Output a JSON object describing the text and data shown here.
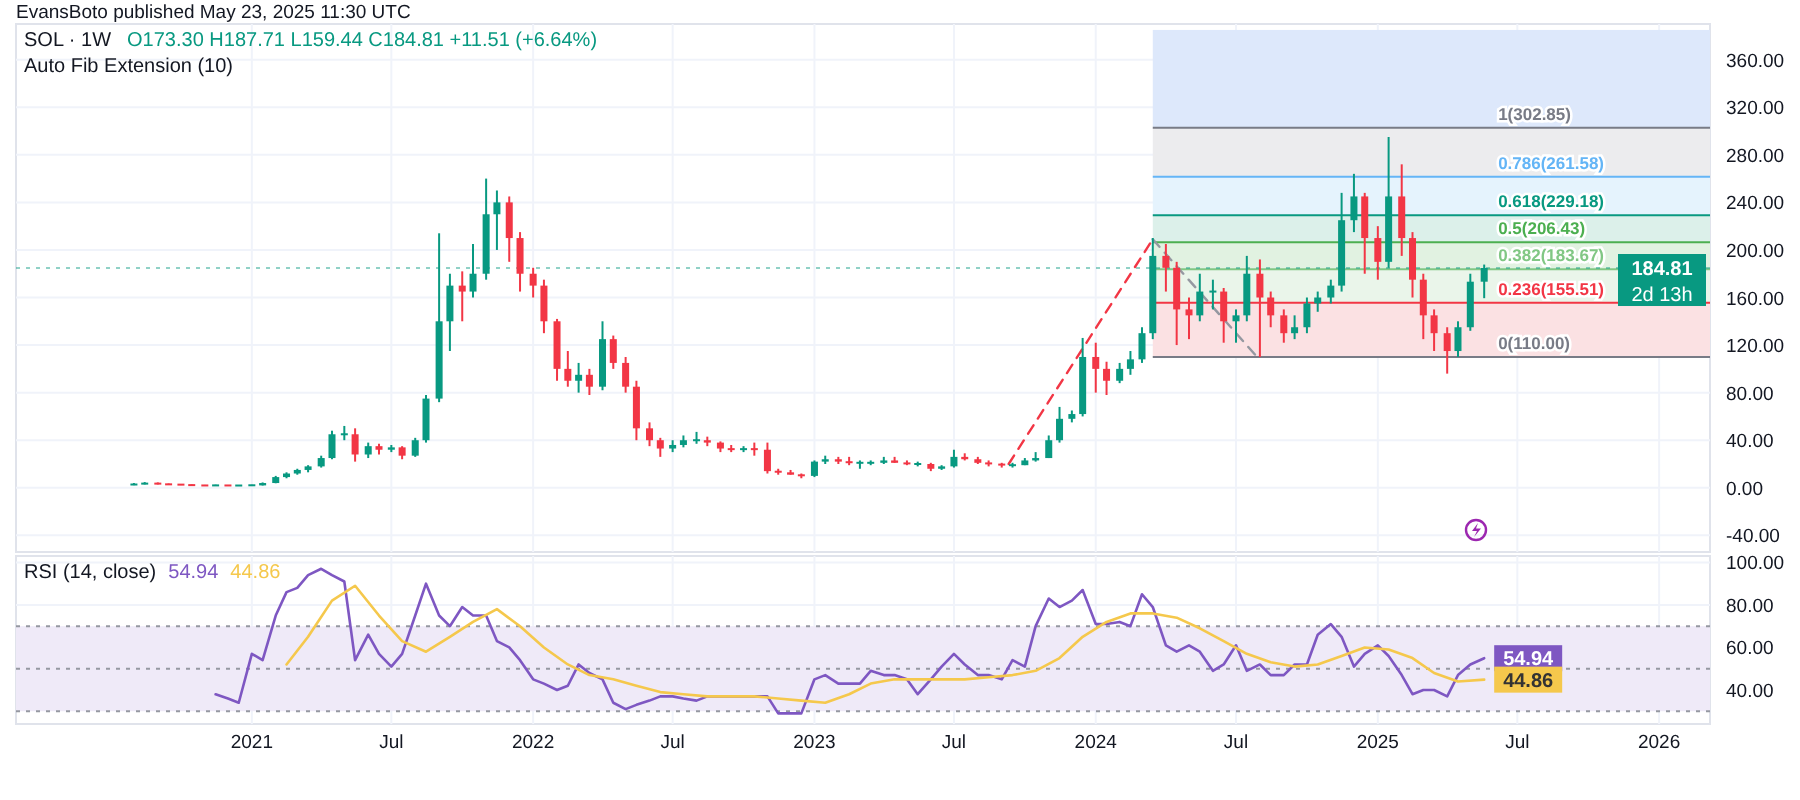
{
  "chart_data": [
    {
      "type": "candlestick",
      "title": "SOL · 1W",
      "subtitle": "O173.30 H187.71 L159.44 C184.81 +11.51 (+6.64%)",
      "annotations": [
        "EvansBoto published May 23, 2025 11:30 UTC",
        "Auto Fib Extension (10)",
        "2d 13h"
      ],
      "x": [
        "2020-08-01",
        "2020-08-15",
        "2020-09-01",
        "2020-09-15",
        "2020-10-01",
        "2020-10-15",
        "2020-11-01",
        "2020-11-15",
        "2020-12-01",
        "2020-12-15",
        "2021-01-01",
        "2021-01-15",
        "2021-02-01",
        "2021-02-15",
        "2021-03-01",
        "2021-03-15",
        "2021-04-01",
        "2021-04-15",
        "2021-05-01",
        "2021-05-15",
        "2021-06-01",
        "2021-06-15",
        "2021-07-01",
        "2021-07-15",
        "2021-08-01",
        "2021-08-15",
        "2021-09-01",
        "2021-09-15",
        "2021-10-01",
        "2021-10-15",
        "2021-11-01",
        "2021-11-15",
        "2021-12-01",
        "2021-12-15",
        "2022-01-01",
        "2022-01-15",
        "2022-02-01",
        "2022-02-15",
        "2022-03-01",
        "2022-03-15",
        "2022-04-01",
        "2022-04-15",
        "2022-05-01",
        "2022-05-15",
        "2022-06-01",
        "2022-06-15",
        "2022-07-01",
        "2022-07-15",
        "2022-08-01",
        "2022-08-15",
        "2022-09-01",
        "2022-09-15",
        "2022-10-01",
        "2022-10-15",
        "2022-11-01",
        "2022-11-15",
        "2022-12-01",
        "2022-12-15",
        "2023-01-01",
        "2023-01-15",
        "2023-02-01",
        "2023-02-15",
        "2023-03-01",
        "2023-03-15",
        "2023-04-01",
        "2023-04-15",
        "2023-05-01",
        "2023-05-15",
        "2023-06-01",
        "2023-06-15",
        "2023-07-01",
        "2023-07-15",
        "2023-08-01",
        "2023-08-15",
        "2023-09-01",
        "2023-09-15",
        "2023-10-01",
        "2023-10-15",
        "2023-11-01",
        "2023-11-15",
        "2023-12-01",
        "2023-12-15",
        "2024-01-01",
        "2024-01-15",
        "2024-02-01",
        "2024-02-15",
        "2024-03-01",
        "2024-03-15",
        "2024-04-01",
        "2024-04-15",
        "2024-05-01",
        "2024-05-15",
        "2024-06-01",
        "2024-06-15",
        "2024-07-01",
        "2024-07-15",
        "2024-08-01",
        "2024-08-15",
        "2024-09-01",
        "2024-09-15",
        "2024-10-01",
        "2024-10-15",
        "2024-11-01",
        "2024-11-15",
        "2024-12-01",
        "2024-12-15",
        "2025-01-01",
        "2025-01-15",
        "2025-02-01",
        "2025-02-15",
        "2025-03-01",
        "2025-03-15",
        "2025-04-01",
        "2025-04-15",
        "2025-05-01",
        "2025-05-19"
      ],
      "ohlc": [
        [
          2.5,
          4,
          2.2,
          3
        ],
        [
          3,
          4.8,
          2.8,
          4
        ],
        [
          4,
          4.5,
          2.8,
          3
        ],
        [
          3,
          3.6,
          2.6,
          2.8
        ],
        [
          2.8,
          3.2,
          2.3,
          2.5
        ],
        [
          2.5,
          2.8,
          1.8,
          2
        ],
        [
          2,
          2.4,
          1.7,
          1.9
        ],
        [
          1.9,
          2.6,
          1.8,
          2.1
        ],
        [
          2.1,
          2.3,
          1.6,
          1.8
        ],
        [
          1.8,
          2.2,
          1.5,
          2
        ],
        [
          2,
          2.5,
          1.6,
          2.2
        ],
        [
          2,
          4.5,
          1.9,
          4
        ],
        [
          4,
          10,
          3.8,
          9
        ],
        [
          9,
          13,
          8,
          12
        ],
        [
          12,
          16,
          11,
          15
        ],
        [
          15,
          19,
          13,
          18
        ],
        [
          18,
          27,
          17,
          25
        ],
        [
          25,
          48,
          24,
          45
        ],
        [
          45,
          52,
          40,
          45
        ],
        [
          45,
          50,
          22,
          28
        ],
        [
          28,
          38,
          25,
          35
        ],
        [
          35,
          37,
          28,
          32
        ],
        [
          32,
          36,
          30,
          34
        ],
        [
          34,
          35,
          24,
          27
        ],
        [
          27,
          42,
          26,
          40
        ],
        [
          40,
          78,
          38,
          75
        ],
        [
          75,
          214,
          72,
          140
        ],
        [
          140,
          180,
          115,
          170
        ],
        [
          170,
          182,
          140,
          165
        ],
        [
          165,
          205,
          160,
          180
        ],
        [
          180,
          260,
          175,
          230
        ],
        [
          230,
          250,
          200,
          240
        ],
        [
          240,
          245,
          190,
          210
        ],
        [
          210,
          215,
          165,
          180
        ],
        [
          180,
          185,
          160,
          170
        ],
        [
          170,
          175,
          130,
          140
        ],
        [
          140,
          142,
          90,
          100
        ],
        [
          100,
          115,
          85,
          90
        ],
        [
          90,
          105,
          80,
          95
        ],
        [
          95,
          100,
          78,
          85
        ],
        [
          85,
          140,
          82,
          125
        ],
        [
          125,
          128,
          100,
          105
        ],
        [
          105,
          110,
          80,
          85
        ],
        [
          85,
          90,
          40,
          50
        ],
        [
          50,
          55,
          35,
          40
        ],
        [
          40,
          42,
          26,
          33
        ],
        [
          33,
          40,
          30,
          36
        ],
        [
          36,
          44,
          34,
          40
        ],
        [
          40,
          47,
          37,
          40
        ],
        [
          40,
          43,
          35,
          38
        ],
        [
          38,
          39,
          30,
          33
        ],
        [
          33,
          36,
          30,
          32
        ],
        [
          32,
          35,
          30,
          33
        ],
        [
          33,
          38,
          27,
          32
        ],
        [
          32,
          38,
          12,
          14
        ],
        [
          14,
          16,
          11,
          13
        ],
        [
          13,
          15,
          11,
          11
        ],
        [
          11,
          12,
          8,
          10
        ],
        [
          10,
          23,
          9,
          22
        ],
        [
          22,
          27,
          20,
          24
        ],
        [
          24,
          26,
          20,
          22
        ],
        [
          22,
          26,
          19,
          21
        ],
        [
          21,
          23,
          16,
          21
        ],
        [
          21,
          23,
          19,
          21
        ],
        [
          21,
          26,
          20,
          23
        ],
        [
          23,
          26,
          21,
          21
        ],
        [
          21,
          23,
          19,
          20
        ],
        [
          20,
          22,
          18,
          20
        ],
        [
          20,
          21,
          14,
          16
        ],
        [
          16,
          19,
          15,
          18
        ],
        [
          18,
          32,
          17,
          26
        ],
        [
          26,
          29,
          23,
          24
        ],
        [
          24,
          26,
          20,
          21
        ],
        [
          21,
          23,
          18,
          20
        ],
        [
          20,
          21,
          17,
          19
        ],
        [
          19,
          21,
          17,
          19
        ],
        [
          19,
          25,
          19,
          23
        ],
        [
          23,
          30,
          22,
          25
        ],
        [
          25,
          44,
          25,
          40
        ],
        [
          40,
          68,
          38,
          58
        ],
        [
          58,
          65,
          55,
          62
        ],
        [
          62,
          126,
          60,
          110
        ],
        [
          110,
          122,
          80,
          100
        ],
        [
          100,
          106,
          78,
          90
        ],
        [
          90,
          105,
          88,
          100
        ],
        [
          100,
          115,
          95,
          108
        ],
        [
          108,
          135,
          105,
          130
        ],
        [
          130,
          210,
          125,
          195
        ],
        [
          195,
          205,
          165,
          185
        ],
        [
          185,
          190,
          120,
          150
        ],
        [
          150,
          160,
          125,
          145
        ],
        [
          145,
          180,
          140,
          165
        ],
        [
          165,
          175,
          150,
          165
        ],
        [
          165,
          168,
          122,
          140
        ],
        [
          140,
          150,
          122,
          145
        ],
        [
          145,
          195,
          140,
          180
        ],
        [
          180,
          192,
          110,
          160
        ],
        [
          160,
          165,
          135,
          145
        ],
        [
          145,
          150,
          122,
          130
        ],
        [
          130,
          145,
          125,
          135
        ],
        [
          135,
          160,
          130,
          155
        ],
        [
          155,
          165,
          148,
          160
        ],
        [
          160,
          175,
          155,
          170
        ],
        [
          170,
          248,
          165,
          225
        ],
        [
          225,
          264,
          215,
          245
        ],
        [
          245,
          248,
          180,
          210
        ],
        [
          210,
          220,
          175,
          190
        ],
        [
          190,
          295,
          185,
          245
        ],
        [
          245,
          272,
          195,
          210
        ],
        [
          210,
          215,
          160,
          175
        ],
        [
          175,
          180,
          125,
          145
        ],
        [
          145,
          150,
          115,
          130
        ],
        [
          130,
          135,
          96,
          115
        ],
        [
          115,
          140,
          110,
          135
        ],
        [
          135,
          180,
          132,
          173.3
        ],
        [
          173.3,
          187.71,
          159.44,
          184.81
        ]
      ],
      "series": [
        {
          "type": "line",
          "x": [
            "2023-09-10",
            "2024-03-15"
          ],
          "values": [
            20,
            209
          ],
          "color": "#f23645",
          "line_style": "dashed"
        },
        {
          "type": "line",
          "x": [
            "2024-03-15",
            "2024-07-27"
          ],
          "values": [
            209,
            111
          ],
          "color": "#9598a1",
          "line_style": "dashed"
        }
      ],
      "ref_lines": [
        {
          "axis": "y",
          "value": 110,
          "label": "0(110.00)",
          "color": "#787b86",
          "line_style": "solid"
        },
        {
          "axis": "y",
          "value": 155.51,
          "label": "0.236(155.51)",
          "color": "#f23645",
          "line_style": "solid"
        },
        {
          "axis": "y",
          "value": 183.67,
          "label": "0.382(183.67)",
          "color": "#81c784",
          "line_style": "solid"
        },
        {
          "axis": "y",
          "value": 206.43,
          "label": "0.5(206.43)",
          "color": "#4caf50",
          "line_style": "solid"
        },
        {
          "axis": "y",
          "value": 229.18,
          "label": "0.618(229.18)",
          "color": "#089981",
          "line_style": "solid"
        },
        {
          "axis": "y",
          "value": 261.58,
          "label": "0.786(261.58)",
          "color": "#64b5f6",
          "line_style": "solid"
        },
        {
          "axis": "y",
          "value": 302.85,
          "label": "1(302.85)",
          "color": "#787b86",
          "line_style": "solid"
        },
        {
          "axis": "y",
          "value": 184.81,
          "label": "184.81",
          "color": "#089981",
          "line_style": "dotted"
        }
      ],
      "bands": [
        {
          "axis": "y",
          "from": 110,
          "to": 155.51,
          "color": "#fbe1e3"
        },
        {
          "axis": "y",
          "from": 155.51,
          "to": 183.67,
          "color": "#eaf5ea"
        },
        {
          "axis": "y",
          "from": 183.67,
          "to": 206.43,
          "color": "#e1f2e1"
        },
        {
          "axis": "y",
          "from": 206.43,
          "to": 229.18,
          "color": "#dcf0ea"
        },
        {
          "axis": "y",
          "from": 229.18,
          "to": 261.58,
          "color": "#e5f3fd"
        },
        {
          "axis": "y",
          "from": 261.58,
          "to": 302.85,
          "color": "#ececee"
        },
        {
          "axis": "y",
          "from": 302.85,
          "to": 385,
          "color": "#dde8fb"
        }
      ],
      "xlim": [
        "2020-03-01",
        "2026-03-08"
      ],
      "xticks": [
        {
          "value": "2021-01-01",
          "label": null
        },
        {
          "value": "2021-07-01",
          "label": null
        },
        {
          "value": "2022-01-01",
          "label": null
        },
        {
          "value": "2022-07-01",
          "label": null
        },
        {
          "value": "2023-01-01",
          "label": null
        },
        {
          "value": "2023-07-01",
          "label": null
        },
        {
          "value": "2024-01-01",
          "label": null
        },
        {
          "value": "2024-07-01",
          "label": null
        },
        {
          "value": "2025-01-01",
          "label": null
        },
        {
          "value": "2025-07-01",
          "label": null
        },
        {
          "value": "2026-01-01",
          "label": null
        }
      ],
      "ylim": [
        -54,
        390
      ],
      "yticks": [
        {
          "value": -40,
          "label": "-40.00"
        },
        {
          "value": 0,
          "label": "0.00"
        },
        {
          "value": 40,
          "label": "40.00"
        },
        {
          "value": 80,
          "label": "80.00"
        },
        {
          "value": 120,
          "label": "120.00"
        },
        {
          "value": 160,
          "label": "160.00"
        },
        {
          "value": 200,
          "label": "200.00"
        },
        {
          "value": 240,
          "label": "240.00"
        },
        {
          "value": 280,
          "label": "280.00"
        },
        {
          "value": 320,
          "label": "320.00"
        },
        {
          "value": 360,
          "label": "360.00"
        }
      ],
      "tick_labels": "y",
      "grid": true
    },
    {
      "type": "line",
      "title": "RSI (14, close)",
      "series": [
        {
          "color": "#7e57c2",
          "x": [
            "2020-11-15",
            "2020-12-01",
            "2020-12-15",
            "2021-01-01",
            "2021-01-15",
            "2021-02-01",
            "2021-02-15",
            "2021-03-01",
            "2021-03-15",
            "2021-04-01",
            "2021-04-15",
            "2021-05-01",
            "2021-05-15",
            "2021-06-01",
            "2021-06-15",
            "2021-07-01",
            "2021-07-15",
            "2021-08-01",
            "2021-08-15",
            "2021-09-01",
            "2021-09-15",
            "2021-10-01",
            "2021-10-15",
            "2021-11-01",
            "2021-11-15",
            "2021-12-01",
            "2021-12-15",
            "2022-01-01",
            "2022-01-15",
            "2022-02-01",
            "2022-02-15",
            "2022-03-01",
            "2022-03-15",
            "2022-04-01",
            "2022-04-15",
            "2022-05-01",
            "2022-05-15",
            "2022-06-01",
            "2022-06-15",
            "2022-07-01",
            "2022-07-15",
            "2022-08-01",
            "2022-08-15",
            "2022-09-01",
            "2022-09-15",
            "2022-10-01",
            "2022-10-15",
            "2022-11-01",
            "2022-11-15",
            "2022-12-01",
            "2022-12-15",
            "2023-01-01",
            "2023-01-15",
            "2023-02-01",
            "2023-02-15",
            "2023-03-01",
            "2023-03-15",
            "2023-04-01",
            "2023-04-15",
            "2023-05-01",
            "2023-05-15",
            "2023-06-01",
            "2023-06-15",
            "2023-07-01",
            "2023-07-15",
            "2023-08-01",
            "2023-08-15",
            "2023-09-01",
            "2023-09-15",
            "2023-10-01",
            "2023-10-15",
            "2023-11-01",
            "2023-11-15",
            "2023-12-01",
            "2023-12-15",
            "2024-01-01",
            "2024-01-15",
            "2024-02-01",
            "2024-02-15",
            "2024-03-01",
            "2024-03-15",
            "2024-04-01",
            "2024-04-15",
            "2024-05-01",
            "2024-05-15",
            "2024-06-01",
            "2024-06-15",
            "2024-07-01",
            "2024-07-15",
            "2024-08-01",
            "2024-08-15",
            "2024-09-01",
            "2024-09-15",
            "2024-10-01",
            "2024-10-15",
            "2024-11-01",
            "2024-11-15",
            "2024-12-01",
            "2024-12-15",
            "2025-01-01",
            "2025-01-15",
            "2025-02-01",
            "2025-02-15",
            "2025-03-01",
            "2025-03-15",
            "2025-04-01",
            "2025-04-15",
            "2025-05-01",
            "2025-05-19"
          ],
          "values": [
            38,
            36,
            34,
            57,
            54,
            75,
            86,
            88,
            94,
            97,
            94,
            91,
            54,
            66,
            57,
            51,
            57,
            75,
            90,
            75,
            70,
            79,
            75,
            75,
            63,
            60,
            54,
            45,
            43,
            40,
            42,
            52,
            48,
            45,
            34,
            31,
            33,
            35,
            37,
            37,
            36,
            35,
            37,
            37,
            37,
            37,
            37,
            37,
            29,
            29,
            29,
            45,
            47,
            43,
            43,
            43,
            49,
            47,
            47,
            45,
            38,
            45,
            51,
            57,
            52,
            47,
            47,
            45,
            54,
            51,
            70,
            83,
            79,
            82,
            87,
            71,
            71,
            72,
            70,
            85,
            79,
            61,
            58,
            61,
            58,
            49,
            52,
            61,
            49,
            52,
            47,
            47,
            52,
            52,
            66,
            71,
            65,
            51,
            57,
            61,
            56,
            47,
            38,
            40,
            40,
            37,
            47,
            52,
            54.94
          ],
          "value_labels": [
            null,
            null,
            null,
            null,
            null,
            null,
            null,
            null,
            null,
            null,
            null,
            null,
            null,
            null,
            null,
            null,
            null,
            null,
            null,
            null,
            null,
            null,
            null,
            null,
            null,
            null,
            null,
            null,
            null,
            null,
            null,
            null,
            null,
            null,
            null,
            null,
            null,
            null,
            null,
            null,
            null,
            null,
            null,
            null,
            null,
            null,
            null,
            null,
            null,
            null,
            null,
            null,
            null,
            null,
            null,
            null,
            null,
            null,
            null,
            null,
            null,
            null,
            null,
            null,
            null,
            null,
            null,
            null,
            null,
            null,
            null,
            null,
            null,
            null,
            null,
            null,
            null,
            null,
            null,
            null,
            null,
            null,
            null,
            null,
            null,
            null,
            null,
            null,
            null,
            null,
            null,
            null,
            null,
            null,
            null,
            null,
            null,
            null,
            null,
            null,
            null,
            null,
            null,
            null,
            null,
            null,
            null,
            null,
            "54.94"
          ]
        },
        {
          "color": "#f5c84c",
          "x": [
            "2021-02-15",
            "2021-03-15",
            "2021-04-15",
            "2021-05-15",
            "2021-06-15",
            "2021-07-15",
            "2021-08-15",
            "2021-09-15",
            "2021-10-15",
            "2021-11-15",
            "2021-12-15",
            "2022-01-15",
            "2022-02-15",
            "2022-03-15",
            "2022-04-15",
            "2022-05-15",
            "2022-06-15",
            "2022-07-15",
            "2022-08-15",
            "2022-09-15",
            "2022-10-15",
            "2022-11-15",
            "2022-12-15",
            "2023-01-15",
            "2023-02-15",
            "2023-03-15",
            "2023-04-15",
            "2023-05-15",
            "2023-06-15",
            "2023-07-15",
            "2023-08-15",
            "2023-09-15",
            "2023-10-15",
            "2023-11-15",
            "2023-12-15",
            "2024-01-15",
            "2024-02-15",
            "2024-03-15",
            "2024-04-15",
            "2024-05-15",
            "2024-06-15",
            "2024-07-15",
            "2024-08-15",
            "2024-09-15",
            "2024-10-15",
            "2024-11-15",
            "2024-12-15",
            "2025-01-15",
            "2025-02-15",
            "2025-03-15",
            "2025-04-15",
            "2025-05-19"
          ],
          "values": [
            52,
            65,
            82,
            89,
            75,
            63,
            58,
            65,
            72,
            78,
            70,
            60,
            52,
            47,
            45,
            42,
            39,
            38,
            37,
            37,
            37,
            36,
            35,
            34,
            38,
            43,
            45,
            45,
            45,
            45,
            46,
            47,
            49,
            55,
            65,
            72,
            76,
            76,
            74,
            69,
            63,
            57,
            53,
            51,
            52,
            56,
            60,
            59,
            55,
            48,
            44,
            44.86
          ],
          "value_labels": [
            null,
            null,
            null,
            null,
            null,
            null,
            null,
            null,
            null,
            null,
            null,
            null,
            null,
            null,
            null,
            null,
            null,
            null,
            null,
            null,
            null,
            null,
            null,
            null,
            null,
            null,
            null,
            null,
            null,
            null,
            null,
            null,
            null,
            null,
            null,
            null,
            null,
            null,
            null,
            null,
            null,
            null,
            null,
            null,
            null,
            null,
            null,
            null,
            null,
            null,
            null,
            "44.86"
          ]
        }
      ],
      "ref_lines": [
        {
          "axis": "y",
          "value": 70,
          "label": null,
          "color": "#9598a1",
          "line_style": "dotted"
        },
        {
          "axis": "y",
          "value": 50,
          "label": null,
          "color": "#9598a1",
          "line_style": "dotted"
        },
        {
          "axis": "y",
          "value": 30,
          "label": null,
          "color": "#9598a1",
          "line_style": "dotted"
        }
      ],
      "bands": [
        {
          "axis": "y",
          "from": 30,
          "to": 70,
          "color": "#efeaf8"
        }
      ],
      "xlim": [
        "2020-03-01",
        "2026-03-08"
      ],
      "xticks": [
        {
          "value": "2021-01-01",
          "label": "2021"
        },
        {
          "value": "2021-07-01",
          "label": "Jul"
        },
        {
          "value": "2022-01-01",
          "label": "2022"
        },
        {
          "value": "2022-07-01",
          "label": "Jul"
        },
        {
          "value": "2023-01-01",
          "label": "2023"
        },
        {
          "value": "2023-07-01",
          "label": "Jul"
        },
        {
          "value": "2024-01-01",
          "label": "2024"
        },
        {
          "value": "2024-07-01",
          "label": "Jul"
        },
        {
          "value": "2025-01-01",
          "label": "2025"
        },
        {
          "value": "2025-07-01",
          "label": "Jul"
        },
        {
          "value": "2026-01-01",
          "label": "2026"
        }
      ],
      "ylim": [
        24,
        103
      ],
      "yticks": [
        {
          "value": 40,
          "label": "40.00"
        },
        {
          "value": 60,
          "label": "60.00"
        },
        {
          "value": 80,
          "label": "80.00"
        },
        {
          "value": 100,
          "label": "100.00"
        }
      ],
      "grid": true
    }
  ]
}
